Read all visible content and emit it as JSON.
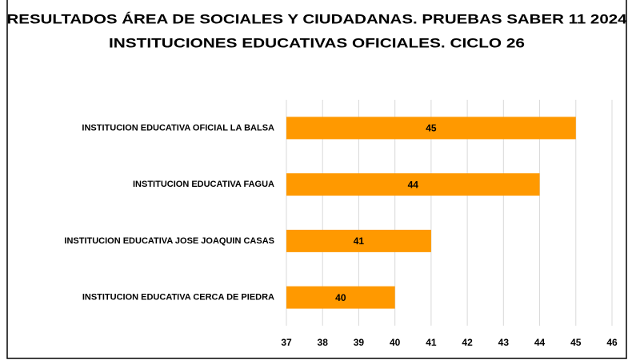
{
  "chart_data": {
    "type": "barh",
    "title": [
      "RESULTADOS ÁREA DE SOCIALES Y CIUDADANAS. PRUEBAS SABER 11 2024",
      "INSTITUCIONES EDUCATIVAS OFICIALES. CICLO 26"
    ],
    "categories": [
      "INSTITUCION EDUCATIVA OFICIAL LA BALSA",
      "INSTITUCION EDUCATIVA FAGUA",
      "INSTITUCION EDUCATIVA JOSE JOAQUIN CASAS",
      "INSTITUCION EDUCATIVA CERCA DE PIEDRA"
    ],
    "values": [
      45,
      44,
      41,
      40
    ],
    "color": "#ff9900",
    "xlim": [
      37,
      46
    ],
    "xticks": [
      37,
      38,
      39,
      40,
      41,
      42,
      43,
      44,
      45,
      46
    ],
    "grid": true
  }
}
